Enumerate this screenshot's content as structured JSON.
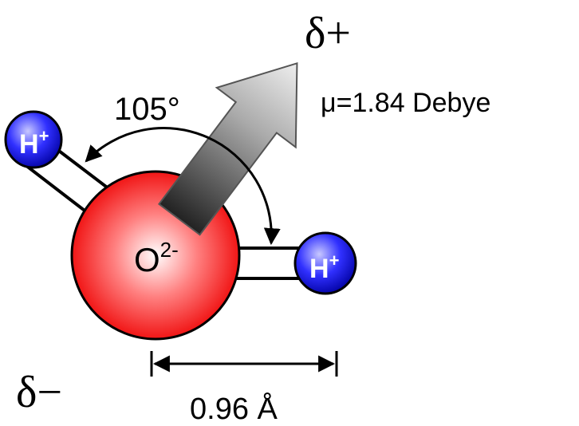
{
  "annotations": {
    "positive_pole": "δ+",
    "negative_pole": "δ−",
    "dipole_moment": "μ=1.84 Debye",
    "bond_angle": "105°",
    "bond_length": "0.96 Å"
  },
  "nodes": [
    {
      "label": "H",
      "charge": "+"
    },
    {
      "label": "O",
      "charge": "2-"
    },
    {
      "label": "H",
      "charge": "+"
    }
  ]
}
